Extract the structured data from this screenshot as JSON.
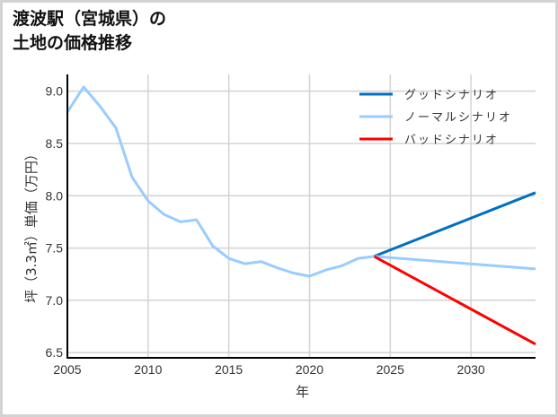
{
  "title": {
    "line1": "渡波駅（宮城県）の",
    "line2": "土地の価格推移"
  },
  "chart_data": {
    "type": "line",
    "title": "渡波駅（宮城県）の土地の価格推移",
    "xlabel": "年",
    "ylabel": "坪（3.3㎡）単価（万円）",
    "xlim": [
      2005,
      2034
    ],
    "ylim": [
      6.45,
      9.16
    ],
    "x_ticks": [
      2005,
      2010,
      2015,
      2020,
      2025,
      2030
    ],
    "y_ticks": [
      6.5,
      7.0,
      7.5,
      8.0,
      8.5,
      9.0
    ],
    "y_tick_labels": [
      "6.5",
      "7.0",
      "7.5",
      "8.0",
      "8.5",
      "9.0"
    ],
    "grid": true,
    "legend_position": "upper right",
    "historical": {
      "x": [
        2005,
        2006,
        2007,
        2008,
        2009,
        2010,
        2011,
        2012,
        2013,
        2014,
        2015,
        2016,
        2017,
        2018,
        2019,
        2020,
        2021,
        2022,
        2023,
        2024
      ],
      "y": [
        8.8,
        9.04,
        8.86,
        8.65,
        8.18,
        7.95,
        7.82,
        7.75,
        7.77,
        7.52,
        7.4,
        7.35,
        7.37,
        7.31,
        7.26,
        7.23,
        7.29,
        7.33,
        7.4,
        7.42
      ],
      "color": "#99ccff"
    },
    "series": [
      {
        "name": "グッドシナリオ",
        "color": "#0070c0",
        "x": [
          2024,
          2034
        ],
        "y": [
          7.42,
          8.03
        ]
      },
      {
        "name": "ノーマルシナリオ",
        "color": "#99ccff",
        "x": [
          2024,
          2034
        ],
        "y": [
          7.42,
          7.3
        ]
      },
      {
        "name": "バッドシナリオ",
        "color": "#ff0000",
        "x": [
          2024,
          2034
        ],
        "y": [
          7.42,
          6.58
        ]
      }
    ]
  }
}
